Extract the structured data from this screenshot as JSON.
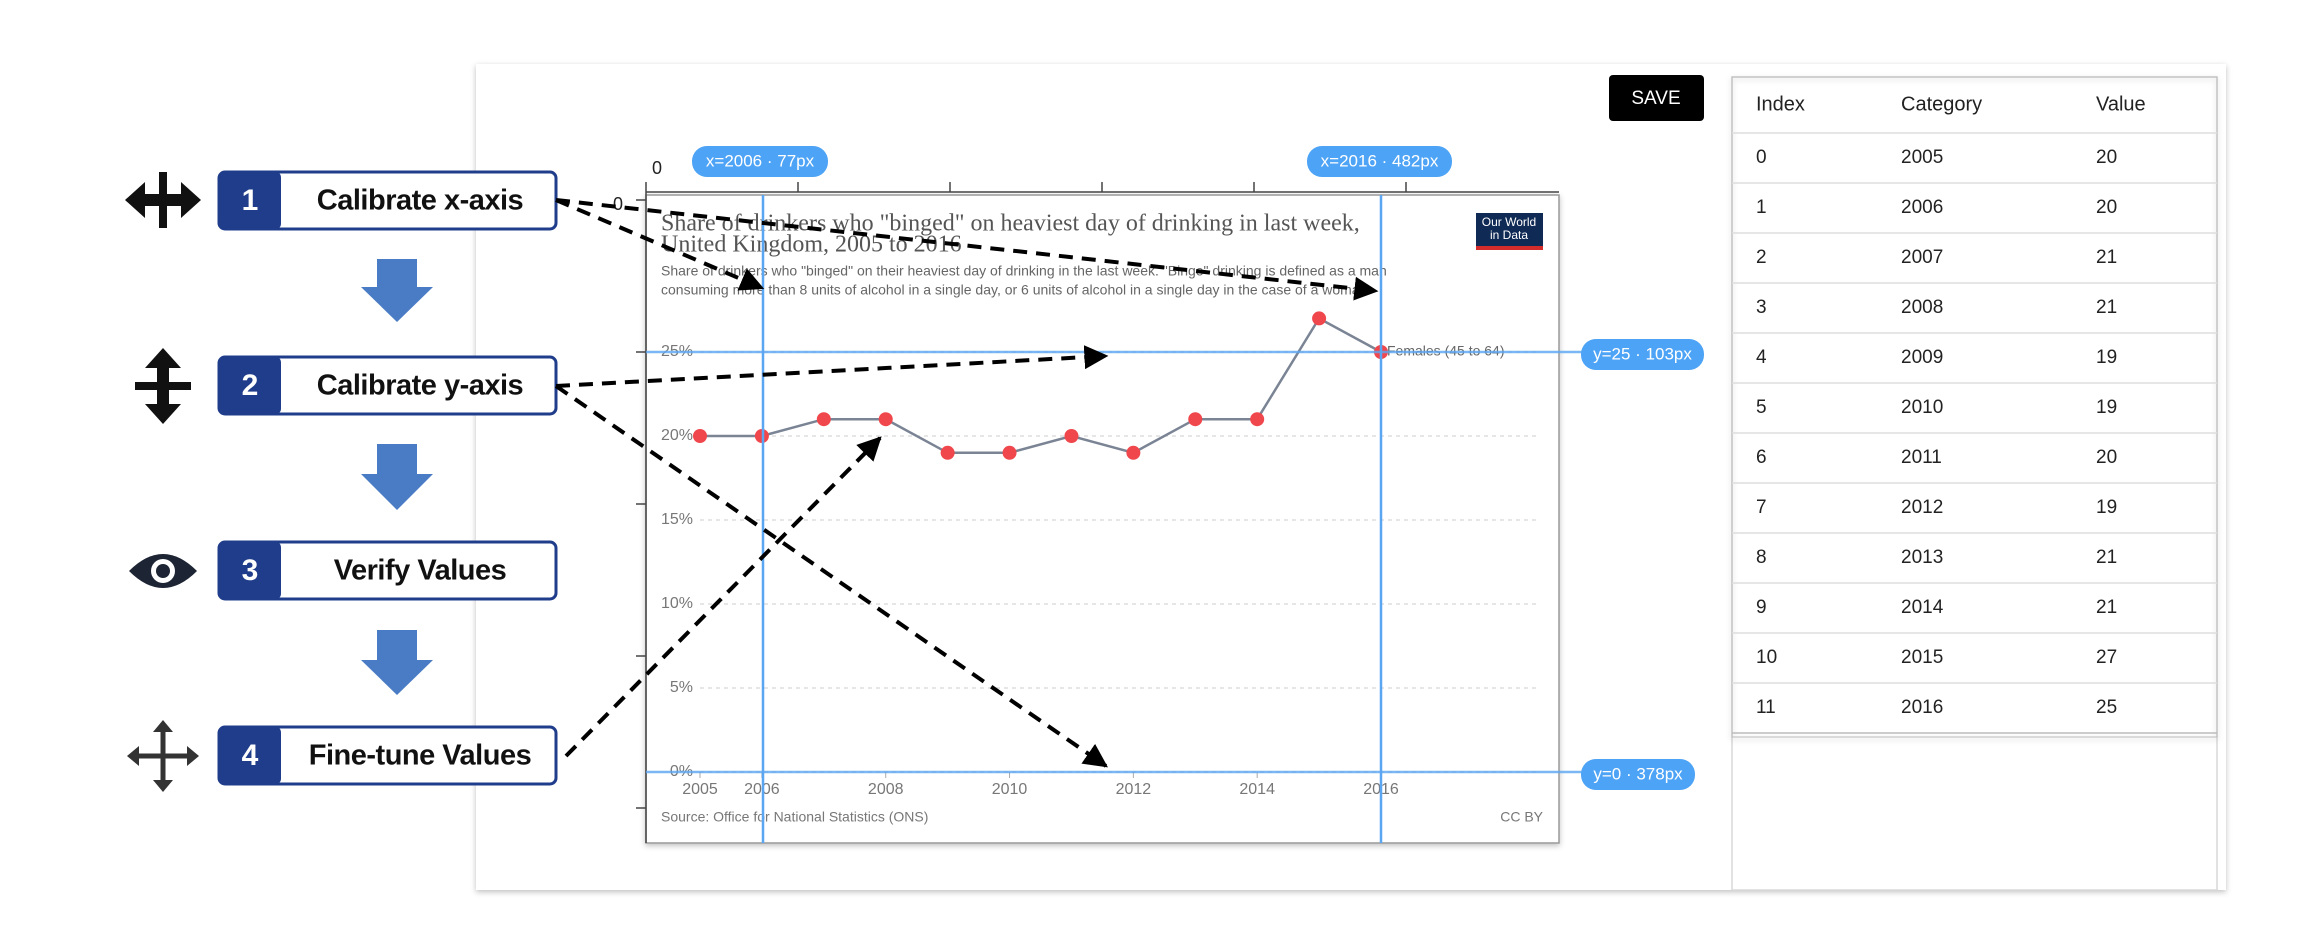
{
  "steps": [
    {
      "number": 1,
      "label": "Calibrate x-axis"
    },
    {
      "number": 2,
      "label": "Calibrate y-axis"
    },
    {
      "number": 3,
      "label": "Verify Values"
    },
    {
      "number": 4,
      "label": "Fine-tune Values"
    }
  ],
  "save_button": "SAVE",
  "ruler_labels": [
    "0",
    "0"
  ],
  "badges": [
    "x=2006 · 77px",
    "x=2016 · 482px",
    "y=25 · 103px",
    "y=0 · 378px"
  ],
  "chart": {
    "type": "line",
    "title": [
      "Share of drinkers who \"binged\" on heaviest day of drinking in last week,",
      "United Kingdom, 2005 to 2016"
    ],
    "subtitle": [
      "Share of drinkers who \"binged\" on their heaviest day of drinking in the last week. \"Binge\" drinking is defined as a man",
      "consuming more than 8 units of alcohol in a single day, or 6 units of alcohol in a single day in the case of a woman."
    ],
    "logo": [
      "Our World",
      "in Data"
    ],
    "x": [
      2005,
      2006,
      2007,
      2008,
      2009,
      2010,
      2011,
      2012,
      2013,
      2014,
      2015,
      2016
    ],
    "series": [
      {
        "name": "Females (45 to 64)",
        "color": "#f0474d",
        "values": [
          20,
          20,
          21,
          21,
          19,
          19,
          20,
          19,
          21,
          21,
          27,
          25
        ]
      }
    ],
    "xlim": [
      2005,
      2016
    ],
    "xticks": [
      2005,
      2006,
      2008,
      2010,
      2012,
      2014,
      2016
    ],
    "ylim": [
      0,
      25
    ],
    "yticks": [
      {
        "value": 0,
        "label": "0%"
      },
      {
        "value": 5,
        "label": "5%"
      },
      {
        "value": 10,
        "label": "10%"
      },
      {
        "value": 15,
        "label": "15%"
      },
      {
        "value": 20,
        "label": "20%"
      },
      {
        "value": 25,
        "label": "25%"
      }
    ],
    "grid": true,
    "source": "Source: Office for National Statistics (ONS)",
    "license": "CC BY"
  },
  "table": {
    "headers": [
      "Index",
      "Category",
      "Value"
    ],
    "rows": [
      [
        0,
        2005,
        20
      ],
      [
        1,
        2006,
        20
      ],
      [
        2,
        2007,
        21
      ],
      [
        3,
        2008,
        21
      ],
      [
        4,
        2009,
        19
      ],
      [
        5,
        2010,
        19
      ],
      [
        6,
        2011,
        20
      ],
      [
        7,
        2012,
        19
      ],
      [
        8,
        2013,
        21
      ],
      [
        9,
        2014,
        21
      ],
      [
        10,
        2015,
        27
      ],
      [
        11,
        2016,
        25
      ]
    ]
  }
}
